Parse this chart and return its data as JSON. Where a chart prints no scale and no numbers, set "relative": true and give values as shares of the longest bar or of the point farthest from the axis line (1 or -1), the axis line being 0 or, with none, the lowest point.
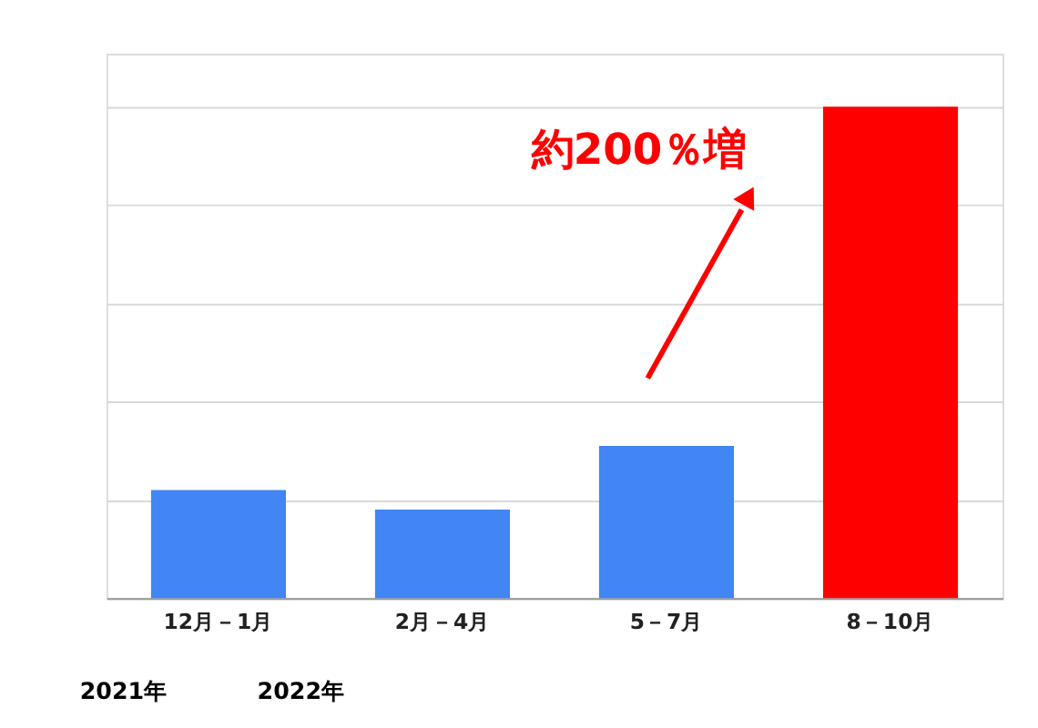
{
  "chart_data": {
    "type": "bar",
    "relative": true,
    "categories": [
      "12月－1月",
      "2月－4月",
      "5－7月",
      "8－10月"
    ],
    "values": [
      0.22,
      0.18,
      0.31,
      1
    ],
    "colors": [
      "#4285f4",
      "#4285f4",
      "#4285f4",
      "#ff0000"
    ],
    "grid": "y",
    "annotations": [
      "約200％増",
      "2021年",
      "2022年"
    ]
  }
}
